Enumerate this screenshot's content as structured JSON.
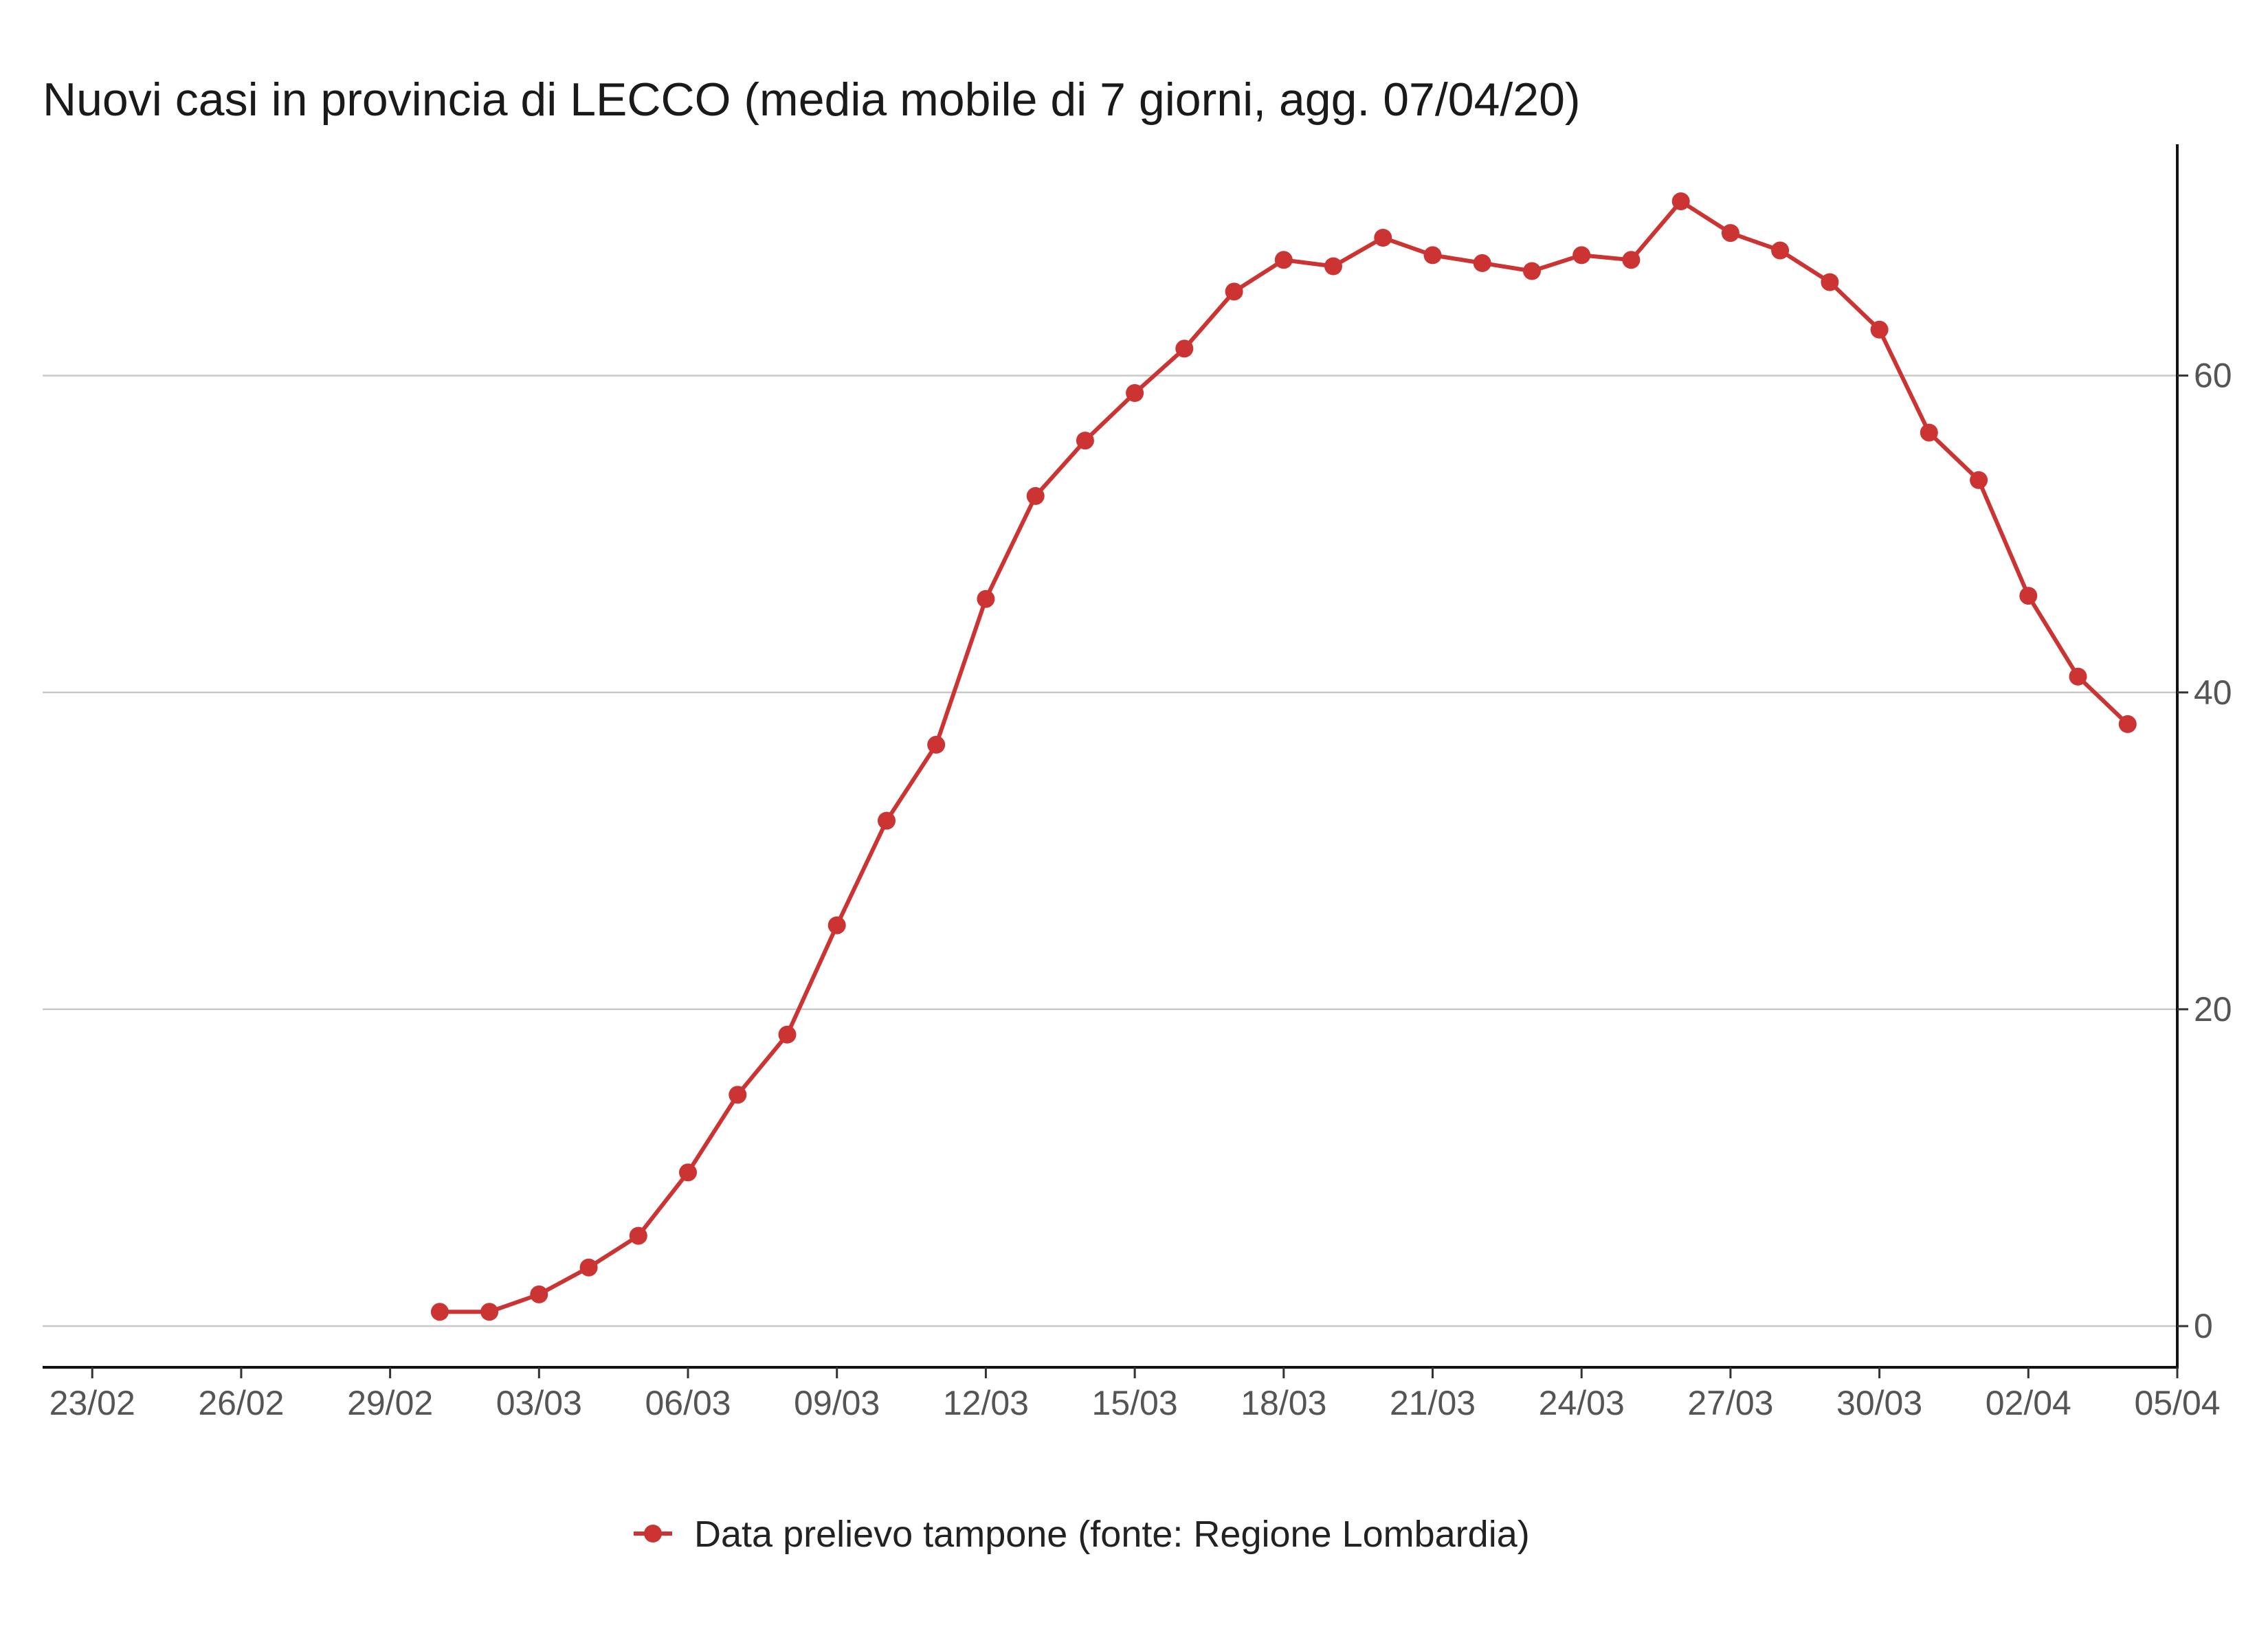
{
  "chart_data": {
    "type": "line",
    "title": "Nuovi casi in provincia di LECCO (media mobile di 7 giorni, agg. 07/04/20)",
    "xlabel": "",
    "ylabel": "",
    "x_axis_format": "DD/MM",
    "x_range": [
      "2020-02-22",
      "2020-04-05"
    ],
    "y_range": [
      -2.6,
      74.6
    ],
    "y_ticks": [
      0,
      20,
      40,
      60
    ],
    "y_axis_side": "right",
    "x_ticks": [
      {
        "date": "2020-02-23",
        "label": "23/02"
      },
      {
        "date": "2020-02-26",
        "label": "26/02"
      },
      {
        "date": "2020-02-29",
        "label": "29/02"
      },
      {
        "date": "2020-03-03",
        "label": "03/03"
      },
      {
        "date": "2020-03-06",
        "label": "06/03"
      },
      {
        "date": "2020-03-09",
        "label": "09/03"
      },
      {
        "date": "2020-03-12",
        "label": "12/03"
      },
      {
        "date": "2020-03-15",
        "label": "15/03"
      },
      {
        "date": "2020-03-18",
        "label": "18/03"
      },
      {
        "date": "2020-03-21",
        "label": "21/03"
      },
      {
        "date": "2020-03-24",
        "label": "24/03"
      },
      {
        "date": "2020-03-27",
        "label": "27/03"
      },
      {
        "date": "2020-03-30",
        "label": "30/03"
      },
      {
        "date": "2020-04-02",
        "label": "02/04"
      },
      {
        "date": "2020-04-05",
        "label": "05/04"
      }
    ],
    "grid": true,
    "legend_position": "bottom",
    "series": [
      {
        "name": "Data prelievo tampone (fonte: Regione Lombardia)",
        "color": "#cc3333",
        "points": [
          {
            "x": "2020-03-01",
            "y": 0.9
          },
          {
            "x": "2020-03-02",
            "y": 0.9
          },
          {
            "x": "2020-03-03",
            "y": 2.0
          },
          {
            "x": "2020-03-04",
            "y": 3.7
          },
          {
            "x": "2020-03-05",
            "y": 5.7
          },
          {
            "x": "2020-03-06",
            "y": 9.7
          },
          {
            "x": "2020-03-07",
            "y": 14.6
          },
          {
            "x": "2020-03-08",
            "y": 18.4
          },
          {
            "x": "2020-03-09",
            "y": 25.3
          },
          {
            "x": "2020-03-10",
            "y": 31.9
          },
          {
            "x": "2020-03-11",
            "y": 36.7
          },
          {
            "x": "2020-03-12",
            "y": 45.9
          },
          {
            "x": "2020-03-13",
            "y": 52.4
          },
          {
            "x": "2020-03-14",
            "y": 55.9
          },
          {
            "x": "2020-03-15",
            "y": 58.9
          },
          {
            "x": "2020-03-16",
            "y": 61.7
          },
          {
            "x": "2020-03-17",
            "y": 65.3
          },
          {
            "x": "2020-03-18",
            "y": 67.3
          },
          {
            "x": "2020-03-19",
            "y": 66.9
          },
          {
            "x": "2020-03-20",
            "y": 68.7
          },
          {
            "x": "2020-03-21",
            "y": 67.6
          },
          {
            "x": "2020-03-22",
            "y": 67.1
          },
          {
            "x": "2020-03-23",
            "y": 66.6
          },
          {
            "x": "2020-03-24",
            "y": 67.6
          },
          {
            "x": "2020-03-25",
            "y": 67.3
          },
          {
            "x": "2020-03-26",
            "y": 71.0
          },
          {
            "x": "2020-03-27",
            "y": 69.0
          },
          {
            "x": "2020-03-28",
            "y": 67.9
          },
          {
            "x": "2020-03-29",
            "y": 65.9
          },
          {
            "x": "2020-03-30",
            "y": 62.9
          },
          {
            "x": "2020-03-31",
            "y": 56.4
          },
          {
            "x": "2020-04-01",
            "y": 53.4
          },
          {
            "x": "2020-04-02",
            "y": 46.1
          },
          {
            "x": "2020-04-03",
            "y": 41.0
          },
          {
            "x": "2020-04-04",
            "y": 38.0
          }
        ]
      }
    ]
  }
}
